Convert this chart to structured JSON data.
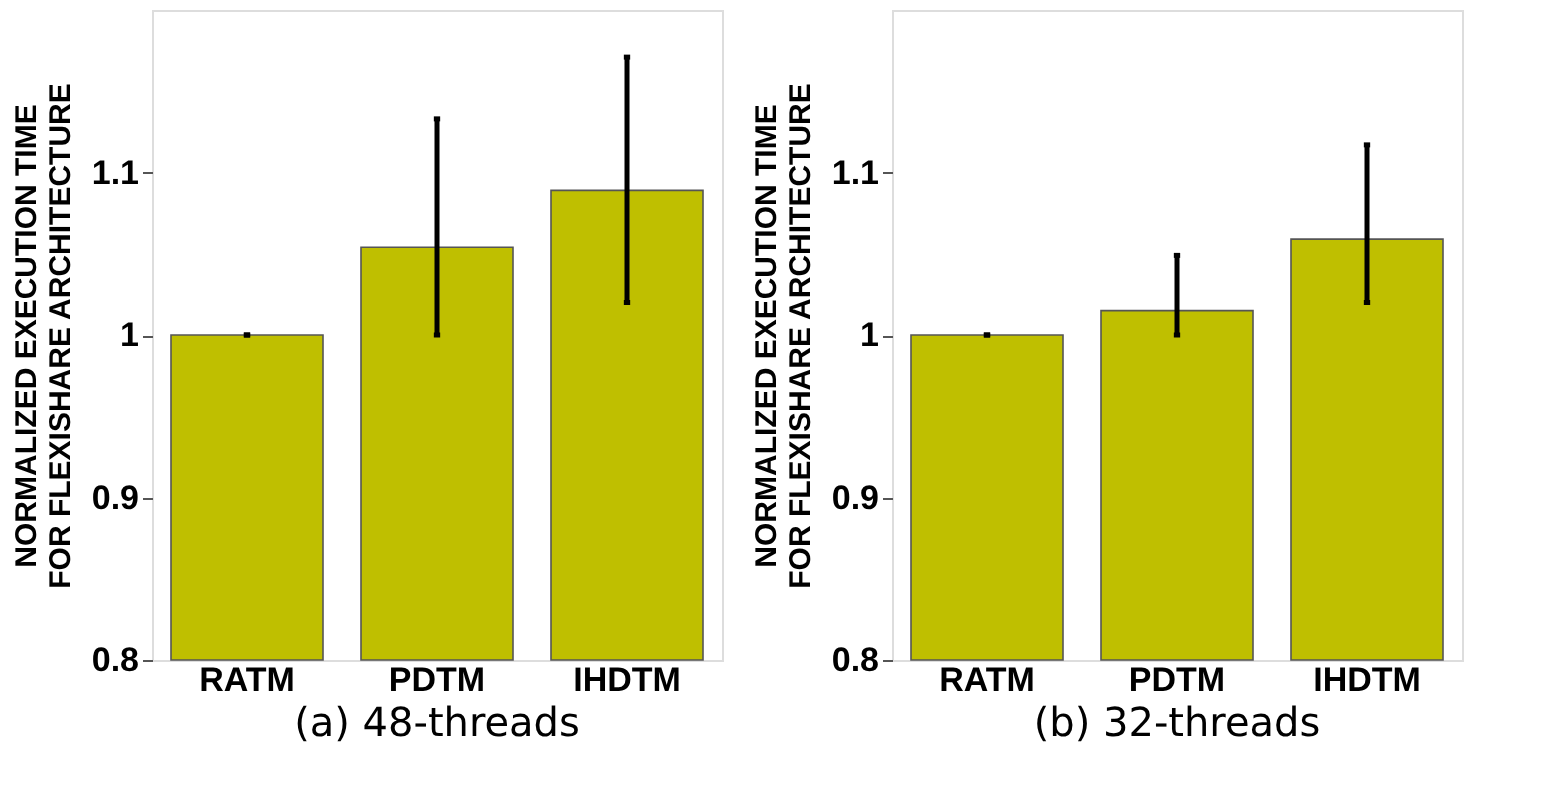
{
  "chart_data": [
    {
      "type": "bar",
      "title": "(a) 48-threads",
      "ylabel": "NORMALIZED EXECUTION TIME\nFOR FLEXISHARE ARCHITECTURE",
      "categories": [
        "RATM",
        "PDTM",
        "IHDTM"
      ],
      "values": [
        1.0,
        1.054,
        1.089
      ],
      "errors": [
        [
          1.0,
          1.0
        ],
        [
          1.0,
          1.133
        ],
        [
          1.02,
          1.171
        ]
      ],
      "color": "#bfbf00",
      "ylim": [
        0.8,
        1.2
      ],
      "yticks": [
        0.8,
        0.9,
        1,
        1.1
      ],
      "grid": false
    },
    {
      "type": "bar",
      "title": "(b) 32-threads",
      "ylabel": "NORMALIZED EXECUTION TIME\nFOR FLEXISHARE ARCHITECTURE",
      "categories": [
        "RATM",
        "PDTM",
        "IHDTM"
      ],
      "values": [
        1.0,
        1.015,
        1.059
      ],
      "errors": [
        [
          1.0,
          1.0
        ],
        [
          1.0,
          1.049
        ],
        [
          1.02,
          1.117
        ]
      ],
      "color": "#bfbf00",
      "ylim": [
        0.8,
        1.2
      ],
      "yticks": [
        0.8,
        0.9,
        1,
        1.1
      ],
      "grid": false
    }
  ]
}
